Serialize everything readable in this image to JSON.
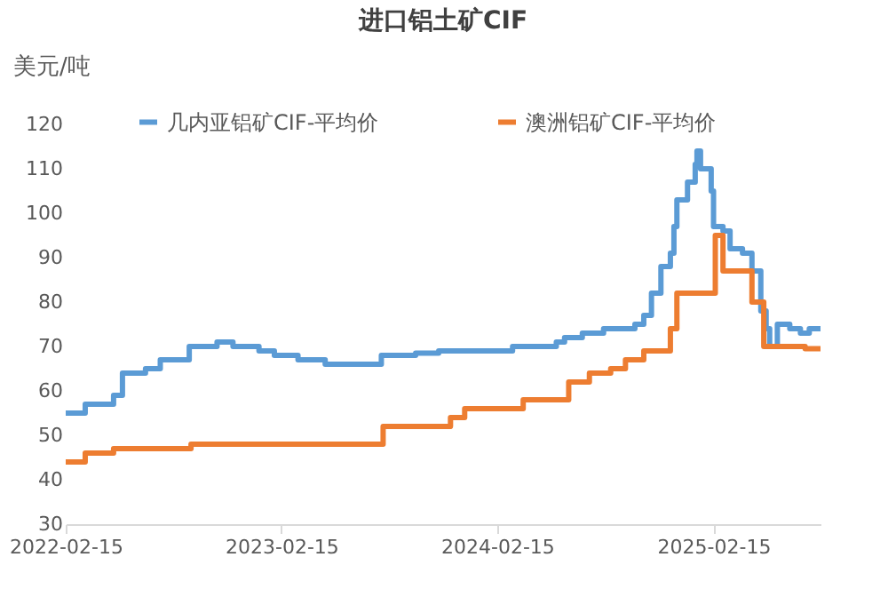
{
  "chart_data": {
    "type": "step",
    "title": "进口铝土矿CIF",
    "ylabel": "美元/吨",
    "xlim": [
      "2022-02-15",
      "2025-08-15"
    ],
    "xticks": [
      "2022-02-15",
      "2023-02-15",
      "2024-02-15",
      "2025-02-15"
    ],
    "ylim": [
      30,
      120
    ],
    "yticks": [
      30,
      40,
      50,
      60,
      70,
      80,
      90,
      100,
      110,
      120
    ],
    "grid": false,
    "legend": "top",
    "line_style": "solid",
    "marker": "none",
    "series": [
      {
        "name": "几内亚铝矿CIF-平均价",
        "color": "#5b9bd5",
        "x": [
          "2022-02-15",
          "2022-03-20",
          "2022-05-07",
          "2022-05-22",
          "2022-06-30",
          "2022-07-25",
          "2022-09-12",
          "2022-10-29",
          "2022-11-25",
          "2023-01-08",
          "2023-02-03",
          "2023-03-15",
          "2023-04-30",
          "2023-08-03",
          "2023-09-30",
          "2023-11-08",
          "2024-03-12",
          "2024-05-25",
          "2024-06-08",
          "2024-07-08",
          "2024-08-13",
          "2024-10-05",
          "2024-10-20",
          "2024-11-02",
          "2024-11-18",
          "2024-12-04",
          "2024-12-10",
          "2024-12-15",
          "2025-01-02",
          "2025-01-15",
          "2025-01-18",
          "2025-01-24",
          "2025-02-02",
          "2025-02-11",
          "2025-02-15",
          "2025-03-03",
          "2025-03-15",
          "2025-04-05",
          "2025-04-21",
          "2025-05-06",
          "2025-05-15",
          "2025-05-21",
          "2025-06-03",
          "2025-06-24",
          "2025-07-12",
          "2025-07-27",
          "2025-08-15"
        ],
        "values": [
          55,
          57,
          59,
          64,
          65,
          67,
          70,
          71,
          70,
          69,
          68,
          67,
          66,
          68,
          68.5,
          69,
          70,
          71,
          72,
          73,
          74,
          75,
          77,
          82,
          88,
          91,
          97,
          103,
          107,
          111,
          114,
          110,
          110,
          105,
          97,
          96,
          92,
          91,
          87,
          78,
          74,
          70,
          75,
          74,
          73,
          74,
          74
        ]
      },
      {
        "name": "澳洲铝矿CIF-平均价",
        "color": "#ed7d31",
        "x": [
          "2022-02-15",
          "2022-03-20",
          "2022-05-07",
          "2022-09-15",
          "2023-08-06",
          "2023-11-28",
          "2023-12-22",
          "2024-03-30",
          "2024-06-15",
          "2024-07-20",
          "2024-08-25",
          "2024-09-19",
          "2024-10-20",
          "2024-12-04",
          "2024-12-15",
          "2025-02-18",
          "2025-03-03",
          "2025-04-21",
          "2025-05-11",
          "2025-07-20",
          "2025-08-15"
        ],
        "values": [
          44,
          46,
          47,
          48,
          52,
          54,
          56,
          58,
          62,
          64,
          65,
          67,
          69,
          74,
          82,
          95,
          87,
          80,
          70,
          69.5,
          69.5
        ]
      }
    ]
  }
}
